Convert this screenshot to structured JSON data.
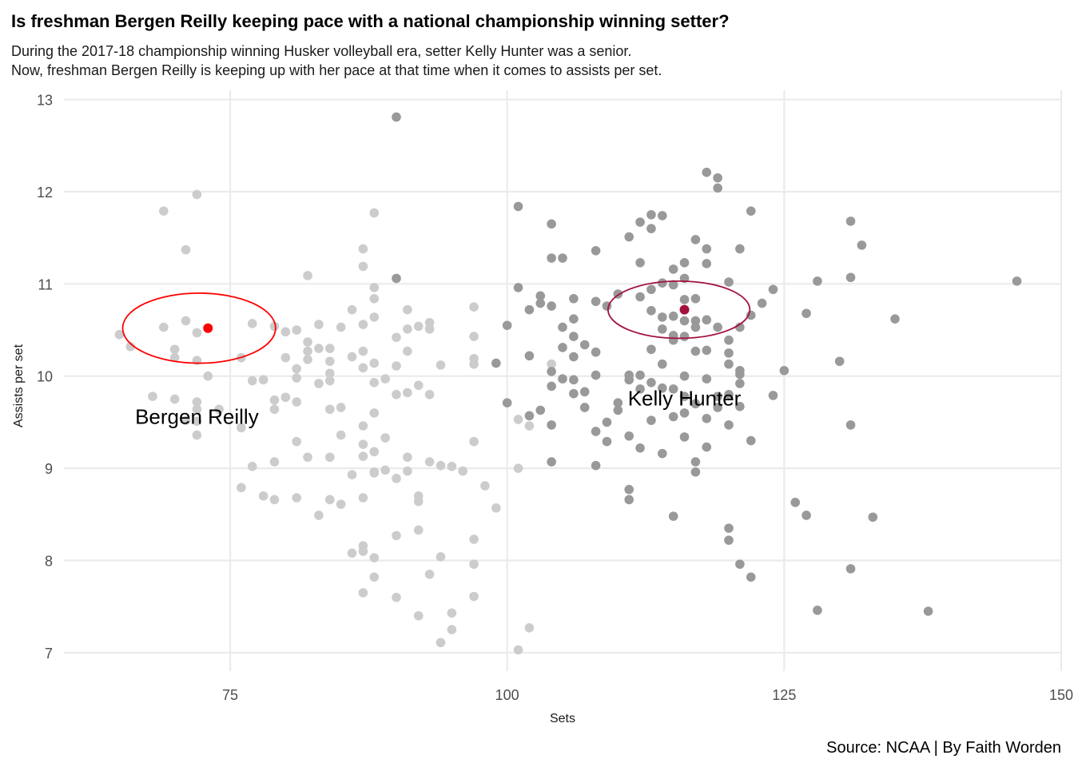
{
  "chart_data": {
    "type": "scatter",
    "title": "Is freshman Bergen Reilly keeping pace with a national championship winning setter?",
    "subtitle_lines": [
      "During the 2017-18 championship winning Husker volleyball era, setter Kelly Hunter was a senior.",
      "Now, freshman Bergen Reilly is keeping up with her pace at that time when it comes to assists per set."
    ],
    "xlabel": "Sets",
    "ylabel": "Assists per set",
    "xlim": [
      60,
      150
    ],
    "ylim": [
      6.8,
      13.1
    ],
    "x_ticks": [
      75,
      100,
      125,
      150
    ],
    "y_ticks": [
      7,
      8,
      9,
      10,
      11,
      12,
      13
    ],
    "grid": true,
    "caption": "Source: NCAA | By Faith Worden",
    "colors": {
      "series_2022": "#cccccc",
      "series_2017": "#999999",
      "bergen": "#ff0000",
      "kelly": "#a3123d",
      "grid": "#ebebeb"
    },
    "highlights": [
      {
        "label": "Bergen Reilly",
        "x": 73,
        "y": 10.52,
        "color": "#ff0000",
        "ellipse": {
          "cx": 72.2,
          "cy": 10.52,
          "rx": 6.9,
          "ry": 0.38
        },
        "label_x": 72,
        "label_y": 9.48
      },
      {
        "label": "Kelly Hunter",
        "x": 116,
        "y": 10.72,
        "color": "#a3123d",
        "ellipse": {
          "cx": 115.5,
          "cy": 10.72,
          "rx": 6.4,
          "ry": 0.31
        },
        "label_x": 116,
        "label_y": 9.68
      }
    ],
    "series": [
      {
        "color": "#cccccc",
        "points": [
          [
            65,
            10.45
          ],
          [
            66,
            10.32
          ],
          [
            69,
            11.79
          ],
          [
            69,
            10.53
          ],
          [
            70,
            10.29
          ],
          [
            70,
            10.2
          ],
          [
            71,
            11.37
          ],
          [
            71,
            10.6
          ],
          [
            72,
            11.97
          ],
          [
            72,
            10.47
          ],
          [
            72,
            10.17
          ],
          [
            72,
            9.72
          ],
          [
            72,
            9.64
          ],
          [
            72,
            9.51
          ],
          [
            72,
            9.36
          ],
          [
            68,
            9.78
          ],
          [
            70,
            9.75
          ],
          [
            71,
            9.52
          ],
          [
            73,
            10.0
          ],
          [
            74,
            9.64
          ],
          [
            76,
            10.2
          ],
          [
            76,
            9.44
          ],
          [
            77,
            10.57
          ],
          [
            77,
            9.95
          ],
          [
            78,
            9.96
          ],
          [
            79,
            9.74
          ],
          [
            79,
            9.64
          ],
          [
            79,
            10.54
          ],
          [
            80,
            10.48
          ],
          [
            80,
            10.2
          ],
          [
            80,
            9.77
          ],
          [
            81,
            10.5
          ],
          [
            81,
            10.08
          ],
          [
            81,
            9.98
          ],
          [
            81,
            9.72
          ],
          [
            81,
            9.29
          ],
          [
            82,
            11.09
          ],
          [
            82,
            10.37
          ],
          [
            82,
            10.27
          ],
          [
            82,
            10.18
          ],
          [
            83,
            10.56
          ],
          [
            83,
            10.3
          ],
          [
            84,
            10.3
          ],
          [
            84,
            10.16
          ],
          [
            84,
            10.03
          ],
          [
            84,
            9.95
          ],
          [
            83,
            9.92
          ],
          [
            84,
            9.64
          ],
          [
            85,
            10.53
          ],
          [
            85,
            9.66
          ],
          [
            85,
            9.36
          ],
          [
            82,
            9.12
          ],
          [
            84,
            9.12
          ],
          [
            86,
            10.72
          ],
          [
            86,
            10.21
          ],
          [
            87,
            11.38
          ],
          [
            87,
            11.19
          ],
          [
            87,
            10.56
          ],
          [
            88,
            10.96
          ],
          [
            88,
            10.84
          ],
          [
            88,
            10.64
          ],
          [
            87,
            10.27
          ],
          [
            88,
            10.14
          ],
          [
            87,
            10.09
          ],
          [
            88,
            9.93
          ],
          [
            87,
            9.46
          ],
          [
            88,
            9.6
          ],
          [
            87,
            9.26
          ],
          [
            87,
            9.13
          ],
          [
            88,
            9.18
          ],
          [
            89,
            9.33
          ],
          [
            89,
            9.97
          ],
          [
            90,
            10.42
          ],
          [
            90,
            10.11
          ],
          [
            90,
            9.8
          ],
          [
            91,
            10.72
          ],
          [
            91,
            10.51
          ],
          [
            91,
            10.27
          ],
          [
            91,
            9.82
          ],
          [
            92,
            10.54
          ],
          [
            92,
            9.9
          ],
          [
            93,
            10.58
          ],
          [
            93,
            10.51
          ],
          [
            93,
            9.8
          ],
          [
            94,
            10.12
          ],
          [
            88,
            11.77
          ],
          [
            91,
            9.12
          ],
          [
            91,
            8.97
          ],
          [
            90,
            8.89
          ],
          [
            88,
            8.95
          ],
          [
            88,
            8.96
          ],
          [
            89,
            8.98
          ],
          [
            92,
            8.7
          ],
          [
            92,
            8.64
          ],
          [
            93,
            9.07
          ],
          [
            94,
            9.03
          ],
          [
            95,
            9.02
          ],
          [
            96,
            8.97
          ],
          [
            97,
            9.29
          ],
          [
            98,
            8.81
          ],
          [
            99,
            8.57
          ],
          [
            97,
            10.75
          ],
          [
            97,
            10.43
          ],
          [
            97,
            10.19
          ],
          [
            97,
            10.13
          ],
          [
            101,
            9.53
          ],
          [
            101,
            9.0
          ],
          [
            102,
            9.46
          ],
          [
            104,
            10.13
          ],
          [
            77,
            9.02
          ],
          [
            78,
            8.7
          ],
          [
            79,
            8.66
          ],
          [
            76,
            8.79
          ],
          [
            79,
            9.07
          ],
          [
            81,
            8.68
          ],
          [
            83,
            8.49
          ],
          [
            84,
            8.66
          ],
          [
            85,
            8.61
          ],
          [
            86,
            8.93
          ],
          [
            87,
            8.68
          ],
          [
            86,
            8.08
          ],
          [
            87,
            8.1
          ],
          [
            87,
            8.16
          ],
          [
            88,
            8.03
          ],
          [
            88,
            7.82
          ],
          [
            87,
            7.65
          ],
          [
            90,
            7.6
          ],
          [
            90,
            8.27
          ],
          [
            92,
            8.33
          ],
          [
            92,
            7.4
          ],
          [
            93,
            7.85
          ],
          [
            94,
            8.04
          ],
          [
            94,
            7.11
          ],
          [
            95,
            7.43
          ],
          [
            95,
            7.25
          ],
          [
            97,
            8.23
          ],
          [
            97,
            7.96
          ],
          [
            97,
            7.61
          ],
          [
            101,
            7.03
          ],
          [
            102,
            7.27
          ]
        ]
      },
      {
        "color": "#999999",
        "points": [
          [
            90,
            12.81
          ],
          [
            90,
            11.06
          ],
          [
            99,
            10.14
          ],
          [
            100,
            10.55
          ],
          [
            100,
            9.71
          ],
          [
            101,
            11.84
          ],
          [
            101,
            10.96
          ],
          [
            102,
            10.72
          ],
          [
            102,
            10.22
          ],
          [
            102,
            9.57
          ],
          [
            103,
            10.87
          ],
          [
            103,
            10.79
          ],
          [
            103,
            9.63
          ],
          [
            104,
            11.65
          ],
          [
            104,
            11.28
          ],
          [
            104,
            10.76
          ],
          [
            104,
            10.05
          ],
          [
            104,
            9.89
          ],
          [
            104,
            9.47
          ],
          [
            104,
            9.07
          ],
          [
            105,
            11.28
          ],
          [
            105,
            10.53
          ],
          [
            105,
            10.31
          ],
          [
            105,
            9.97
          ],
          [
            106,
            10.84
          ],
          [
            106,
            10.62
          ],
          [
            106,
            10.43
          ],
          [
            106,
            10.21
          ],
          [
            106,
            9.96
          ],
          [
            106,
            9.81
          ],
          [
            107,
            10.34
          ],
          [
            107,
            9.83
          ],
          [
            107,
            9.66
          ],
          [
            108,
            11.36
          ],
          [
            108,
            10.81
          ],
          [
            108,
            10.26
          ],
          [
            108,
            10.01
          ],
          [
            108,
            9.4
          ],
          [
            108,
            9.03
          ],
          [
            109,
            10.76
          ],
          [
            109,
            9.5
          ],
          [
            109,
            9.29
          ],
          [
            110,
            10.89
          ],
          [
            110,
            9.71
          ],
          [
            110,
            9.63
          ],
          [
            111,
            11.51
          ],
          [
            111,
            10.01
          ],
          [
            111,
            9.96
          ],
          [
            111,
            9.35
          ],
          [
            111,
            8.77
          ],
          [
            111,
            8.66
          ],
          [
            112,
            11.67
          ],
          [
            112,
            11.23
          ],
          [
            112,
            10.86
          ],
          [
            112,
            10.01
          ],
          [
            112,
            9.86
          ],
          [
            112,
            9.22
          ],
          [
            113,
            11.75
          ],
          [
            113,
            11.6
          ],
          [
            113,
            10.94
          ],
          [
            113,
            10.71
          ],
          [
            113,
            10.29
          ],
          [
            113,
            9.93
          ],
          [
            113,
            9.52
          ],
          [
            114,
            11.74
          ],
          [
            114,
            11.01
          ],
          [
            114,
            10.64
          ],
          [
            114,
            10.51
          ],
          [
            114,
            10.13
          ],
          [
            114,
            9.87
          ],
          [
            114,
            9.16
          ],
          [
            115,
            11.16
          ],
          [
            115,
            10.99
          ],
          [
            115,
            10.65
          ],
          [
            115,
            10.44
          ],
          [
            115,
            10.39
          ],
          [
            115,
            9.86
          ],
          [
            115,
            9.56
          ],
          [
            115,
            8.48
          ],
          [
            116,
            11.23
          ],
          [
            116,
            11.06
          ],
          [
            116,
            10.83
          ],
          [
            116,
            10.6
          ],
          [
            116,
            10.43
          ],
          [
            116,
            10.0
          ],
          [
            116,
            9.78
          ],
          [
            116,
            9.6
          ],
          [
            116,
            9.34
          ],
          [
            117,
            11.48
          ],
          [
            117,
            10.84
          ],
          [
            117,
            10.6
          ],
          [
            117,
            10.53
          ],
          [
            117,
            10.27
          ],
          [
            117,
            9.7
          ],
          [
            117,
            9.07
          ],
          [
            117,
            8.96
          ],
          [
            118,
            12.21
          ],
          [
            118,
            11.38
          ],
          [
            118,
            11.22
          ],
          [
            118,
            10.61
          ],
          [
            118,
            10.28
          ],
          [
            118,
            9.97
          ],
          [
            118,
            9.54
          ],
          [
            118,
            9.23
          ],
          [
            119,
            12.15
          ],
          [
            119,
            12.04
          ],
          [
            119,
            10.53
          ],
          [
            119,
            9.78
          ],
          [
            119,
            9.66
          ],
          [
            120,
            11.02
          ],
          [
            120,
            10.39
          ],
          [
            120,
            10.25
          ],
          [
            120,
            10.13
          ],
          [
            120,
            9.8
          ],
          [
            120,
            9.47
          ],
          [
            120,
            8.35
          ],
          [
            120,
            8.22
          ],
          [
            121,
            11.38
          ],
          [
            121,
            10.53
          ],
          [
            121,
            10.06
          ],
          [
            121,
            10.02
          ],
          [
            121,
            9.92
          ],
          [
            121,
            9.67
          ],
          [
            121,
            7.96
          ],
          [
            122,
            11.79
          ],
          [
            122,
            10.66
          ],
          [
            122,
            9.3
          ],
          [
            122,
            7.82
          ],
          [
            123,
            10.79
          ],
          [
            124,
            10.94
          ],
          [
            124,
            9.79
          ],
          [
            125,
            10.06
          ],
          [
            126,
            8.63
          ],
          [
            127,
            10.68
          ],
          [
            127,
            8.49
          ],
          [
            128,
            11.03
          ],
          [
            128,
            7.46
          ],
          [
            130,
            10.16
          ],
          [
            131,
            11.68
          ],
          [
            131,
            11.07
          ],
          [
            131,
            9.47
          ],
          [
            131,
            7.91
          ],
          [
            132,
            11.42
          ],
          [
            133,
            8.47
          ],
          [
            135,
            10.62
          ],
          [
            138,
            7.45
          ],
          [
            146,
            11.03
          ]
        ]
      }
    ]
  }
}
